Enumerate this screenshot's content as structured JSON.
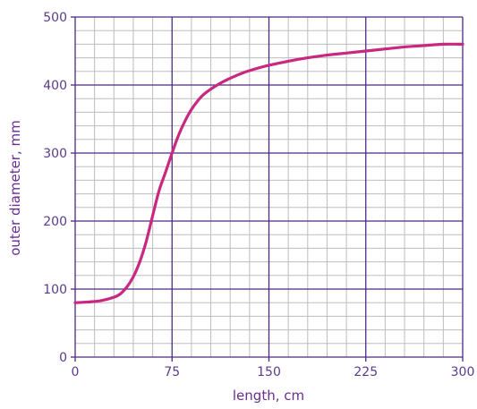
{
  "chart_data": {
    "type": "line",
    "title": "",
    "xlabel": "length, cm",
    "ylabel": "outer diameter, mm",
    "xlim": [
      0,
      300
    ],
    "ylim": [
      0,
      500
    ],
    "x_ticks": [
      0,
      75,
      150,
      225,
      300
    ],
    "y_ticks": [
      0,
      100,
      200,
      300,
      400,
      500
    ],
    "x_tick_labels": [
      "0",
      "75",
      "150",
      "225",
      "300"
    ],
    "y_tick_labels": [
      "0",
      "100",
      "200",
      "300",
      "400",
      "500"
    ],
    "grid": true,
    "legend": "none",
    "series": [
      {
        "x": [
          0,
          10,
          20,
          30,
          35,
          40,
          45,
          50,
          55,
          60,
          65,
          70,
          75,
          80,
          85,
          90,
          95,
          100,
          110,
          120,
          130,
          140,
          150,
          165,
          180,
          195,
          210,
          225,
          240,
          255,
          270,
          285,
          300
        ],
        "y": [
          80,
          81,
          83,
          88,
          93,
          103,
          118,
          140,
          170,
          208,
          245,
          272,
          300,
          326,
          347,
          364,
          377,
          387,
          400,
          410,
          418,
          424,
          429,
          435,
          440,
          444,
          447,
          450,
          453,
          456,
          458,
          460,
          460
        ],
        "color": "#c8287f"
      }
    ]
  },
  "colors": {
    "major_grid": "#4b2a82",
    "minor_grid": "#bdbdbd",
    "text": "#5b3a8c",
    "curve": "#c8287f"
  }
}
